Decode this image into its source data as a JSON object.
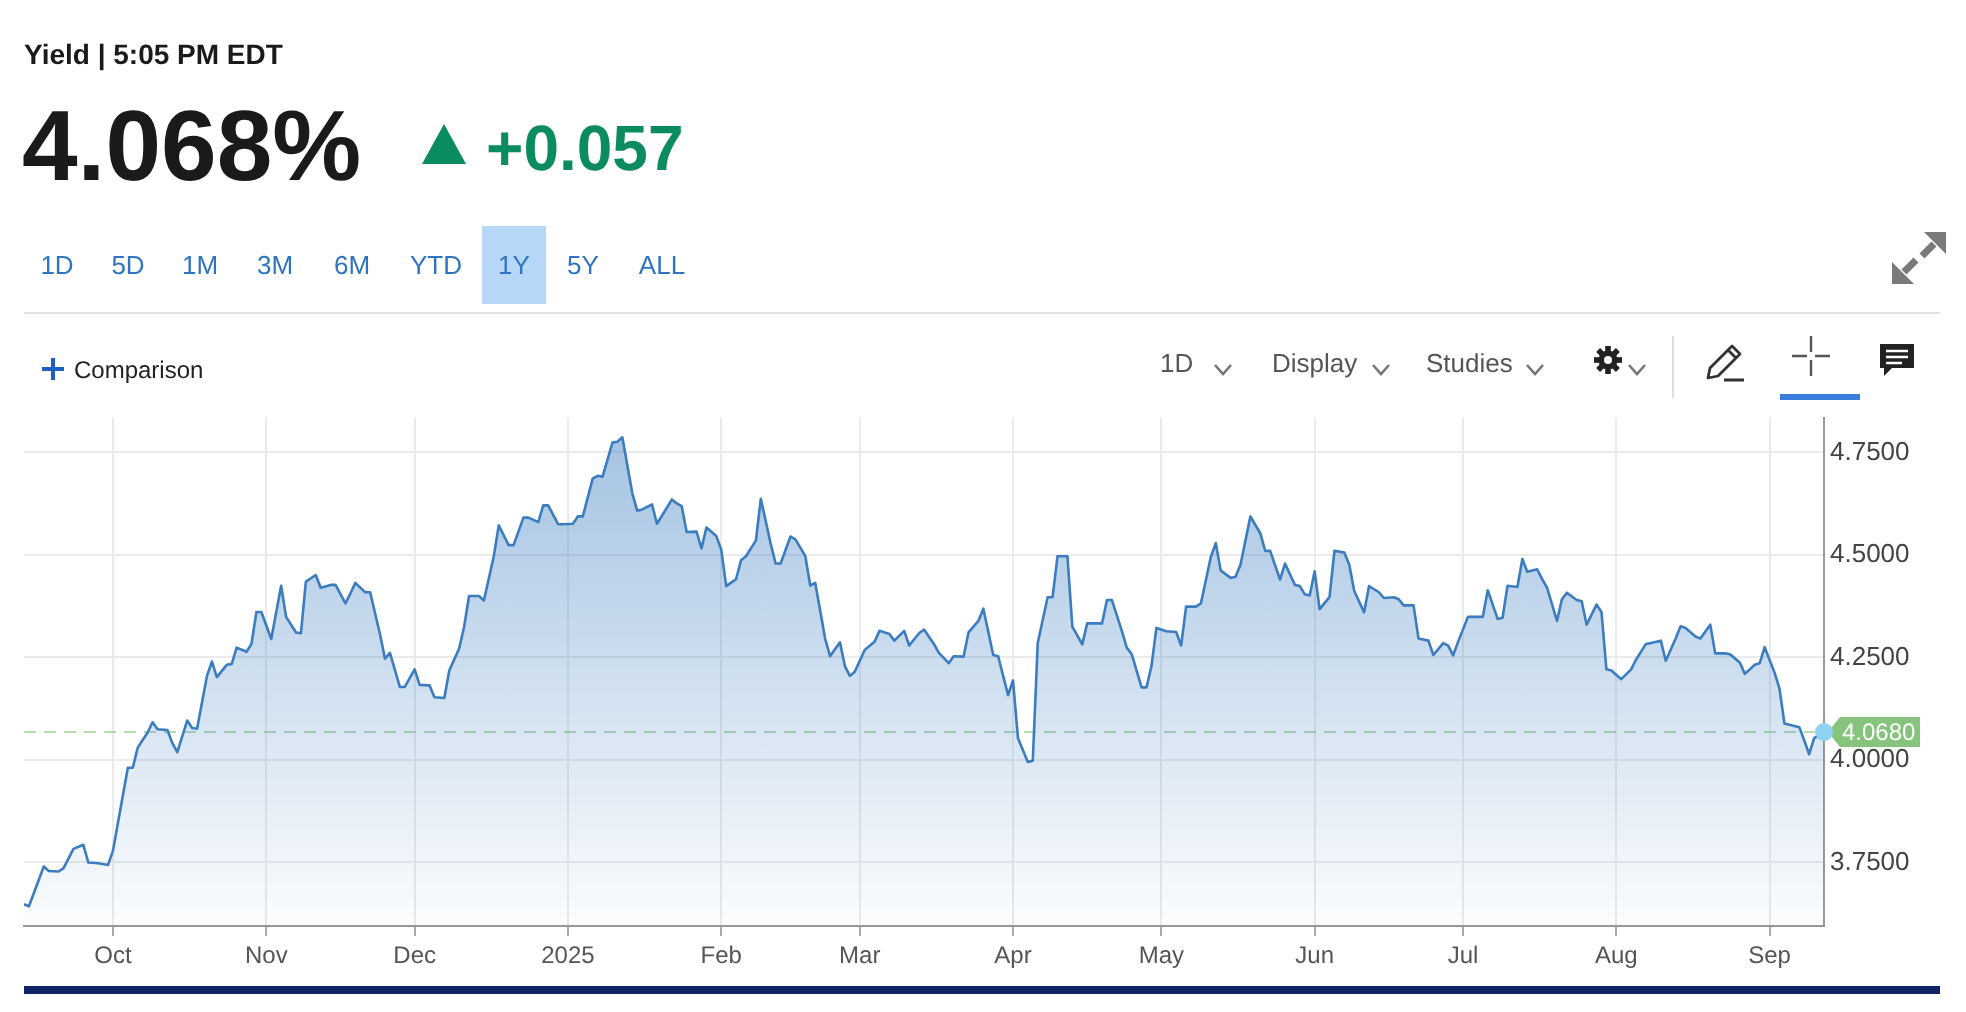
{
  "chart_data": {
    "type": "area",
    "title": "Yield | 5:05 PM EDT",
    "subtitle": "4.068%",
    "annotations": [
      "+0.057",
      "1D",
      "5D",
      "1M",
      "3M",
      "6M",
      "YTD",
      "1Y",
      "5Y",
      "ALL",
      "Comparison",
      "1D",
      "Display",
      "Studies"
    ],
    "x": [
      "2024-09-13",
      "2024-09-14",
      "2024-09-17",
      "2024-09-18",
      "2024-09-20",
      "2024-09-21",
      "2024-09-23",
      "2024-09-25",
      "2024-09-26",
      "2024-09-28",
      "2024-09-30",
      "2024-10-01",
      "2024-10-02",
      "2024-10-04",
      "2024-10-05",
      "2024-10-06",
      "2024-10-08",
      "2024-10-09",
      "2024-10-10",
      "2024-10-12",
      "2024-10-13",
      "2024-10-14",
      "2024-10-16",
      "2024-10-17",
      "2024-10-18",
      "2024-10-20",
      "2024-10-21",
      "2024-10-22",
      "2024-10-24",
      "2024-10-25",
      "2024-10-26",
      "2024-10-28",
      "2024-10-29",
      "2024-10-30",
      "2024-10-31",
      "2024-11-02",
      "2024-11-04",
      "2024-11-05",
      "2024-11-07",
      "2024-11-08",
      "2024-11-09",
      "2024-11-11",
      "2024-11-12",
      "2024-11-14",
      "2024-11-15",
      "2024-11-17",
      "2024-11-18",
      "2024-11-19",
      "2024-11-21",
      "2024-11-22",
      "2024-11-24",
      "2024-11-25",
      "2024-11-26",
      "2024-11-28",
      "2024-11-29",
      "2024-12-01",
      "2024-12-02",
      "2024-12-04",
      "2024-12-05",
      "2024-12-07",
      "2024-12-08",
      "2024-12-10",
      "2024-12-11",
      "2024-12-12",
      "2024-12-14",
      "2024-12-15",
      "2024-12-17",
      "2024-12-18",
      "2024-12-20",
      "2024-12-21",
      "2024-12-23",
      "2024-12-24",
      "2024-12-26",
      "2024-12-27",
      "2024-12-28",
      "2024-12-30",
      "2024-12-31",
      "2025-01-02",
      "2025-01-03",
      "2025-01-04",
      "2025-01-06",
      "2025-01-07",
      "2025-01-08",
      "2025-01-10",
      "2025-01-11",
      "2025-01-12",
      "2025-01-14",
      "2025-01-15",
      "2025-01-16",
      "2025-01-18",
      "2025-01-19",
      "2025-01-21",
      "2025-01-22",
      "2025-01-23",
      "2025-01-24",
      "2025-01-25",
      "2025-01-27",
      "2025-01-28",
      "2025-01-29",
      "2025-01-31",
      "2025-02-01",
      "2025-02-02",
      "2025-02-04",
      "2025-02-05",
      "2025-02-06",
      "2025-02-08",
      "2025-02-09",
      "2025-02-11",
      "2025-02-12",
      "2025-02-13",
      "2025-02-15",
      "2025-02-16",
      "2025-02-18",
      "2025-02-19",
      "2025-02-20",
      "2025-02-22",
      "2025-02-23",
      "2025-02-25",
      "2025-02-26",
      "2025-02-27",
      "2025-02-28",
      "2025-03-02",
      "2025-03-04",
      "2025-03-05",
      "2025-03-07",
      "2025-03-08",
      "2025-03-10",
      "2025-03-11",
      "2025-03-13",
      "2025-03-14",
      "2025-03-16",
      "2025-03-17",
      "2025-03-19",
      "2025-03-20",
      "2025-03-22",
      "2025-03-23",
      "2025-03-25",
      "2025-03-26",
      "2025-03-28",
      "2025-03-29",
      "2025-03-31",
      "2025-04-01",
      "2025-04-02",
      "2025-04-04",
      "2025-04-05",
      "2025-04-06",
      "2025-04-08",
      "2025-04-09",
      "2025-04-10",
      "2025-04-12",
      "2025-04-13",
      "2025-04-15",
      "2025-04-16",
      "2025-04-17",
      "2025-04-19",
      "2025-04-20",
      "2025-04-21",
      "2025-04-23",
      "2025-04-24",
      "2025-04-25",
      "2025-04-27",
      "2025-04-28",
      "2025-04-29",
      "2025-04-30",
      "2025-05-02",
      "2025-05-04",
      "2025-05-05",
      "2025-05-06",
      "2025-05-08",
      "2025-05-09",
      "2025-05-11",
      "2025-05-12",
      "2025-05-13",
      "2025-05-15",
      "2025-05-16",
      "2025-05-17",
      "2025-05-19",
      "2025-05-21",
      "2025-05-22",
      "2025-05-23",
      "2025-05-25",
      "2025-05-26",
      "2025-05-28",
      "2025-05-29",
      "2025-05-30",
      "2025-05-31",
      "2025-06-01",
      "2025-06-02",
      "2025-06-04",
      "2025-06-05",
      "2025-06-07",
      "2025-06-08",
      "2025-06-09",
      "2025-06-11",
      "2025-06-12",
      "2025-06-14",
      "2025-06-15",
      "2025-06-17",
      "2025-06-18",
      "2025-06-19",
      "2025-06-21",
      "2025-06-22",
      "2025-06-24",
      "2025-06-25",
      "2025-06-27",
      "2025-06-28",
      "2025-06-29",
      "2025-06-30",
      "2025-07-02",
      "2025-07-04",
      "2025-07-05",
      "2025-07-06",
      "2025-07-08",
      "2025-07-09",
      "2025-07-10",
      "2025-07-12",
      "2025-07-13",
      "2025-07-14",
      "2025-07-16",
      "2025-07-17",
      "2025-07-18",
      "2025-07-20",
      "2025-07-21",
      "2025-07-22",
      "2025-07-24",
      "2025-07-25",
      "2025-07-26",
      "2025-07-28",
      "2025-07-29",
      "2025-07-30",
      "2025-07-31",
      "2025-08-02",
      "2025-08-04",
      "2025-08-05",
      "2025-08-07",
      "2025-08-08",
      "2025-08-10",
      "2025-08-11",
      "2025-08-13",
      "2025-08-14",
      "2025-08-15",
      "2025-08-17",
      "2025-08-18",
      "2025-08-20",
      "2025-08-21",
      "2025-08-23",
      "2025-08-24",
      "2025-08-26",
      "2025-08-27",
      "2025-08-29",
      "2025-08-30",
      "2025-08-31",
      "2025-09-02",
      "2025-09-03",
      "2025-09-04",
      "2025-09-06",
      "2025-09-07",
      "2025-09-08",
      "2025-09-09",
      "2025-09-10",
      "2025-09-12"
    ],
    "series": [
      {
        "color": "#3b7dc0",
        "values": [
          3.648,
          3.643,
          3.74,
          3.729,
          3.728,
          3.736,
          3.783,
          3.793,
          3.75,
          3.748,
          3.744,
          3.779,
          3.847,
          3.981,
          3.981,
          4.03,
          4.067,
          4.092,
          4.075,
          4.073,
          4.041,
          4.019,
          4.096,
          4.078,
          4.076,
          4.205,
          4.24,
          4.202,
          4.232,
          4.234,
          4.274,
          4.264,
          4.283,
          4.361,
          4.361,
          4.295,
          4.425,
          4.349,
          4.311,
          4.309,
          4.435,
          4.451,
          4.42,
          4.427,
          4.427,
          4.382,
          4.406,
          4.432,
          4.409,
          4.409,
          4.306,
          4.247,
          4.261,
          4.178,
          4.178,
          4.221,
          4.183,
          4.182,
          4.153,
          4.151,
          4.218,
          4.272,
          4.325,
          4.4,
          4.4,
          4.389,
          4.497,
          4.572,
          4.524,
          4.524,
          4.591,
          4.591,
          4.58,
          4.621,
          4.621,
          4.575,
          4.575,
          4.576,
          4.594,
          4.594,
          4.686,
          4.693,
          4.691,
          4.774,
          4.776,
          4.787,
          4.651,
          4.608,
          4.611,
          4.623,
          4.576,
          4.615,
          4.635,
          4.626,
          4.619,
          4.556,
          4.557,
          4.516,
          4.567,
          4.546,
          4.513,
          4.424,
          4.441,
          4.487,
          4.497,
          4.535,
          4.637,
          4.527,
          4.479,
          4.479,
          4.545,
          4.538,
          4.497,
          4.425,
          4.432,
          4.296,
          4.253,
          4.287,
          4.229,
          4.205,
          4.215,
          4.268,
          4.288,
          4.315,
          4.307,
          4.291,
          4.315,
          4.279,
          4.309,
          4.318,
          4.283,
          4.261,
          4.236,
          4.253,
          4.252,
          4.311,
          4.339,
          4.369,
          4.256,
          4.253,
          4.158,
          4.194,
          4.053,
          3.995,
          3.998,
          4.285,
          4.397,
          4.397,
          4.497,
          4.497,
          4.325,
          4.282,
          4.333,
          4.333,
          4.333,
          4.39,
          4.39,
          4.315,
          4.274,
          4.258,
          4.177,
          4.177,
          4.229,
          4.322,
          4.314,
          4.312,
          4.279,
          4.374,
          4.374,
          4.382,
          4.495,
          4.529,
          4.462,
          4.444,
          4.447,
          4.476,
          4.594,
          4.553,
          4.51,
          4.51,
          4.44,
          4.479,
          4.427,
          4.424,
          4.404,
          4.401,
          4.46,
          4.368,
          4.397,
          4.51,
          4.506,
          4.476,
          4.412,
          4.36,
          4.424,
          4.409,
          4.395,
          4.397,
          4.392,
          4.377,
          4.377,
          4.296,
          4.291,
          4.256,
          4.285,
          4.279,
          4.255,
          4.288,
          4.349,
          4.349,
          4.349,
          4.414,
          4.344,
          4.347,
          4.425,
          4.422,
          4.49,
          4.459,
          4.465,
          4.441,
          4.42,
          4.339,
          4.392,
          4.408,
          4.39,
          4.387,
          4.33,
          4.379,
          4.361,
          4.221,
          4.218,
          4.197,
          4.221,
          4.245,
          4.283,
          4.285,
          4.291,
          4.242,
          4.296,
          4.326,
          4.322,
          4.301,
          4.296,
          4.33,
          4.26,
          4.26,
          4.258,
          4.237,
          4.21,
          4.232,
          4.236,
          4.275,
          4.213,
          4.174,
          4.089,
          4.083,
          4.08,
          4.048,
          4.014,
          4.053,
          4.068
        ]
      },
      {
        "type": "scatter",
        "color": "#8fd3f4",
        "x": [
          "2025-09-12"
        ],
        "values": [
          4.068
        ]
      }
    ],
    "xlim": [
      "2024-09-13",
      "2025-09-12"
    ],
    "xticks": [
      {
        "value": "2024-10-01",
        "label": "Oct"
      },
      {
        "value": "2024-11-01",
        "label": "Nov"
      },
      {
        "value": "2024-12-01",
        "label": "Dec"
      },
      {
        "value": "2025-01-01",
        "label": "2025"
      },
      {
        "value": "2025-02-01",
        "label": "Feb"
      },
      {
        "value": "2025-03-01",
        "label": "Mar"
      },
      {
        "value": "2025-04-01",
        "label": "Apr"
      },
      {
        "value": "2025-05-01",
        "label": "May"
      },
      {
        "value": "2025-06-01",
        "label": "Jun"
      },
      {
        "value": "2025-07-01",
        "label": "Jul"
      },
      {
        "value": "2025-08-01",
        "label": "Aug"
      },
      {
        "value": "2025-09-01",
        "label": "Sep"
      }
    ],
    "ylim": [
      3.595,
      4.835
    ],
    "yticks": [
      {
        "value": 3.75,
        "label": "3.7500"
      },
      {
        "value": 4,
        "label": "4.0000"
      },
      {
        "value": 4.25,
        "label": "4.2500"
      },
      {
        "value": 4.5,
        "label": "4.5000"
      },
      {
        "value": 4.75,
        "label": "4.7500"
      }
    ],
    "ref_lines": [
      {
        "axis": "y",
        "value": 4.068,
        "label": "4.0680",
        "color": "#86c47e",
        "line_style": "dashed"
      }
    ],
    "grid": true
  }
}
